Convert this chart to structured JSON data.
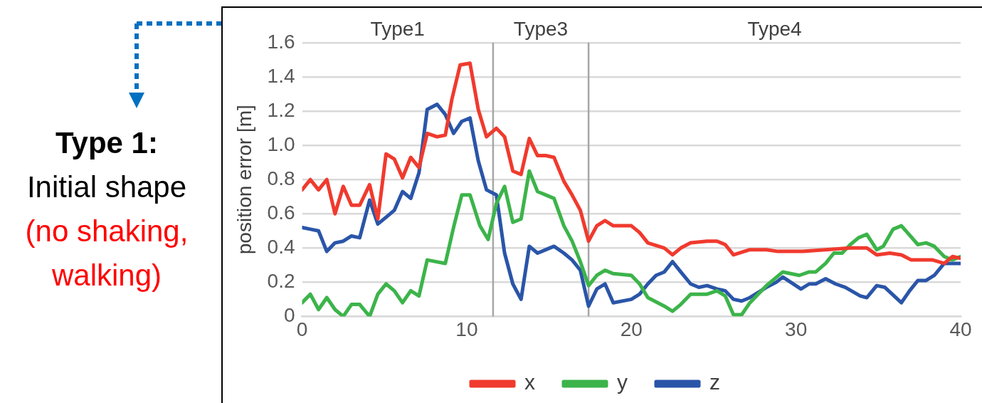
{
  "chart_data": {
    "type": "line",
    "ylabel": "position error [m]",
    "xlim": [
      0,
      40
    ],
    "xticks": [
      0,
      10,
      20,
      30,
      40
    ],
    "ylim": [
      0,
      1.6
    ],
    "yticks": [
      0,
      0.2,
      0.4,
      0.6,
      0.8,
      {
        "value": 1,
        "label": "1.0"
      },
      1.2,
      1.4,
      1.6
    ],
    "grid": "y",
    "legend": "bottom",
    "marker": "none",
    "line_style": "solid",
    "ref_lines": [
      {
        "axis": "x",
        "value": 11.6,
        "color": "#a6a6a6"
      },
      {
        "axis": "x",
        "value": 17.4,
        "color": "#a6a6a6"
      }
    ],
    "annotations": [
      "Type 1:",
      "Initial shape",
      "(no shaking, walking)",
      "Type1",
      "Type3",
      "Type4"
    ],
    "series": [
      {
        "name": "x",
        "color": "#f03a2e",
        "x": [
          0,
          0.5,
          1,
          1.5,
          2,
          2.5,
          3,
          3.5,
          4.1,
          4.6,
          5.1,
          5.6,
          6.1,
          6.6,
          7.1,
          7.6,
          8.2,
          8.7,
          9.1,
          9.6,
          10.2,
          10.7,
          11.2,
          11.8,
          12.3,
          12.8,
          13.3,
          13.8,
          14.3,
          14.8,
          15.3,
          15.9,
          16.4,
          16.9,
          17.4,
          17.9,
          18.4,
          18.9,
          20,
          20.5,
          21,
          22,
          22.5,
          23,
          23.6,
          24.6,
          25.2,
          25.7,
          26.2,
          27.2,
          28.2,
          28.9,
          30.4,
          31.8,
          33.3,
          34.3,
          34.9,
          35.7,
          36.4,
          37,
          38.3,
          39,
          39.5,
          40
        ],
        "values": [
          0.74,
          0.8,
          0.74,
          0.8,
          0.6,
          0.76,
          0.65,
          0.65,
          0.77,
          0.57,
          0.95,
          0.92,
          0.81,
          0.93,
          0.87,
          1.07,
          1.05,
          1.06,
          1.27,
          1.47,
          1.48,
          1.21,
          1.05,
          1.1,
          1.05,
          0.85,
          0.83,
          1.04,
          0.94,
          0.94,
          0.93,
          0.79,
          0.71,
          0.62,
          0.44,
          0.53,
          0.56,
          0.53,
          0.53,
          0.49,
          0.43,
          0.4,
          0.36,
          0.4,
          0.43,
          0.44,
          0.44,
          0.42,
          0.36,
          0.39,
          0.39,
          0.38,
          0.38,
          0.39,
          0.4,
          0.4,
          0.36,
          0.37,
          0.36,
          0.33,
          0.33,
          0.31,
          0.35,
          0.34
        ]
      },
      {
        "name": "y",
        "color": "#3cb44a",
        "x": [
          0,
          0.5,
          1,
          1.5,
          2,
          2.5,
          3,
          3.5,
          4.1,
          4.6,
          5.1,
          5.6,
          6.1,
          6.6,
          7.1,
          7.6,
          8.7,
          9.2,
          9.7,
          10.2,
          10.8,
          11.3,
          11.8,
          12.3,
          12.8,
          13.3,
          13.8,
          14.3,
          15.3,
          15.9,
          16.4,
          16.9,
          17.4,
          17.9,
          18.4,
          18.9,
          20,
          20.5,
          21,
          22,
          22.5,
          23,
          23.6,
          24.6,
          25.2,
          25.7,
          26.2,
          26.7,
          27.2,
          28.2,
          29.2,
          30.2,
          30.8,
          31.2,
          31.8,
          32.3,
          32.8,
          33.3,
          33.8,
          34.3,
          34.9,
          35.3,
          35.9,
          36.4,
          37.4,
          37.9,
          38.4,
          39,
          39.5,
          40
        ],
        "values": [
          0.08,
          0.13,
          0.04,
          0.11,
          0.04,
          0,
          0.07,
          0.07,
          0,
          0.13,
          0.19,
          0.15,
          0.08,
          0.15,
          0.12,
          0.33,
          0.31,
          0.52,
          0.71,
          0.71,
          0.53,
          0.45,
          0.66,
          0.76,
          0.55,
          0.57,
          0.85,
          0.73,
          0.69,
          0.53,
          0.44,
          0.32,
          0.18,
          0.24,
          0.27,
          0.25,
          0.24,
          0.19,
          0.11,
          0.06,
          0.03,
          0.07,
          0.13,
          0.13,
          0.15,
          0.12,
          0.01,
          0.01,
          0.08,
          0.18,
          0.26,
          0.24,
          0.26,
          0.26,
          0.31,
          0.37,
          0.37,
          0.42,
          0.46,
          0.48,
          0.39,
          0.41,
          0.51,
          0.53,
          0.42,
          0.43,
          0.41,
          0.35,
          0.33,
          0.35
        ]
      },
      {
        "name": "z",
        "color": "#2a55a8",
        "x": [
          0,
          0.5,
          1,
          1.5,
          2,
          2.5,
          3,
          3.5,
          4.1,
          4.6,
          5.1,
          5.6,
          6.1,
          6.6,
          7.1,
          7.6,
          8.2,
          8.7,
          9.2,
          9.7,
          10.2,
          10.7,
          11.2,
          11.8,
          12.3,
          12.8,
          13.3,
          13.8,
          14.3,
          15.3,
          15.9,
          16.4,
          16.9,
          17.4,
          17.9,
          18.4,
          18.9,
          20,
          20.5,
          21,
          21.5,
          22,
          22.5,
          23,
          23.6,
          24.1,
          24.6,
          25.2,
          25.7,
          26.2,
          26.7,
          27.2,
          28.2,
          28.8,
          29.2,
          30.3,
          30.8,
          31.2,
          31.8,
          32.4,
          33,
          33.9,
          34.3,
          34.9,
          35.4,
          36.4,
          36.9,
          37.4,
          37.9,
          38.4,
          39,
          39.5,
          40
        ],
        "values": [
          0.52,
          0.51,
          0.5,
          0.38,
          0.43,
          0.44,
          0.47,
          0.46,
          0.68,
          0.54,
          0.58,
          0.62,
          0.73,
          0.69,
          0.84,
          1.21,
          1.24,
          1.18,
          1.07,
          1.14,
          1.16,
          0.91,
          0.74,
          0.71,
          0.37,
          0.19,
          0.1,
          0.41,
          0.37,
          0.41,
          0.37,
          0.33,
          0.27,
          0.06,
          0.16,
          0.19,
          0.08,
          0.1,
          0.13,
          0.19,
          0.24,
          0.26,
          0.32,
          0.26,
          0.19,
          0.17,
          0.18,
          0.16,
          0.15,
          0.1,
          0.09,
          0.11,
          0.17,
          0.2,
          0.23,
          0.16,
          0.19,
          0.19,
          0.22,
          0.19,
          0.17,
          0.12,
          0.11,
          0.18,
          0.17,
          0.08,
          0.15,
          0.21,
          0.21,
          0.24,
          0.31,
          0.31,
          0.31
        ]
      }
    ]
  }
}
